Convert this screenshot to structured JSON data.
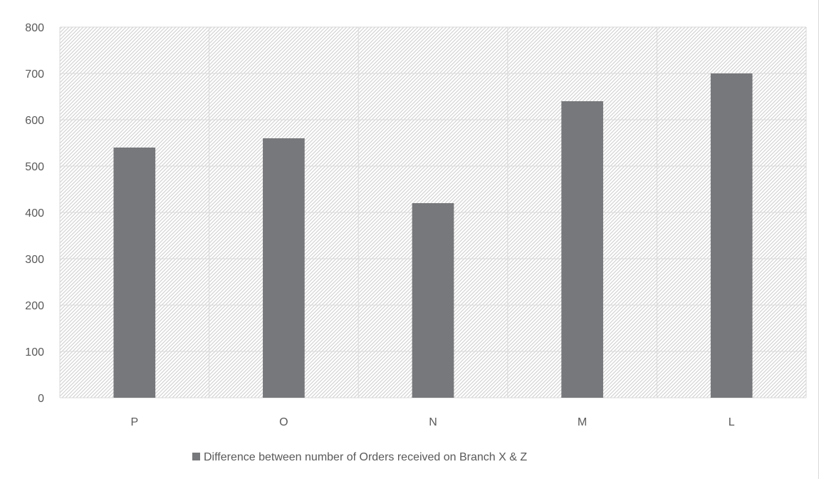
{
  "chart_data": {
    "type": "bar",
    "title": "",
    "xlabel": "",
    "ylabel": "",
    "categories": [
      "P",
      "O",
      "N",
      "M",
      "L"
    ],
    "series": [
      {
        "name": "Difference between number of Orders received on Branch X & Z",
        "values": [
          540,
          560,
          420,
          640,
          700
        ]
      }
    ],
    "ylim": [
      0,
      800
    ],
    "yticks": [
      0,
      100,
      200,
      300,
      400,
      500,
      600,
      700,
      800
    ],
    "grid": true,
    "legend_position": "bottom",
    "bar_color": "#77787b",
    "plot_background": "hatched light gray"
  }
}
